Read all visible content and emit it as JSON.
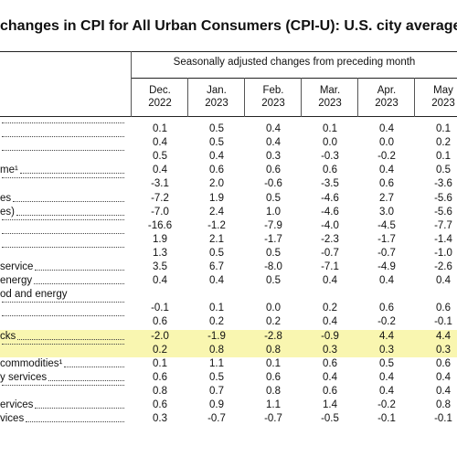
{
  "title": "changes in CPI for All Urban Consumers (CPI-U): U.S. city average",
  "header": "Seasonally adjusted changes from preceding month",
  "columns": [
    {
      "month": "Dec.",
      "year": "2022"
    },
    {
      "month": "Jan.",
      "year": "2023"
    },
    {
      "month": "Feb.",
      "year": "2023"
    },
    {
      "month": "Mar.",
      "year": "2023"
    },
    {
      "month": "Apr.",
      "year": "2023"
    },
    {
      "month": "May",
      "year": "2023"
    }
  ],
  "rows": [
    {
      "values": [
        "0.1",
        "0.5",
        "0.4",
        "0.1",
        "0.4",
        "0.1"
      ]
    },
    {
      "values": [
        "0.4",
        "0.5",
        "0.4",
        "0.0",
        "0.0",
        "0.2"
      ]
    },
    {
      "values": [
        "0.5",
        "0.4",
        "0.3",
        "-0.3",
        "-0.2",
        "0.1"
      ]
    },
    {
      "label": "me¹",
      "values": [
        "0.4",
        "0.6",
        "0.6",
        "0.6",
        "0.4",
        "0.5"
      ]
    },
    {
      "values": [
        "-3.1",
        "2.0",
        "-0.6",
        "-3.5",
        "0.6",
        "-3.6"
      ]
    },
    {
      "label": "es",
      "values": [
        "-7.2",
        "1.9",
        "0.5",
        "-4.6",
        "2.7",
        "-5.6"
      ]
    },
    {
      "label": "es)",
      "values": [
        "-7.0",
        "2.4",
        "1.0",
        "-4.6",
        "3.0",
        "-5.6"
      ]
    },
    {
      "values": [
        "-16.6",
        "-1.2",
        "-7.9",
        "-4.0",
        "-4.5",
        "-7.7"
      ]
    },
    {
      "values": [
        "1.9",
        "2.1",
        "-1.7",
        "-2.3",
        "-1.7",
        "-1.4"
      ]
    },
    {
      "values": [
        "1.3",
        "0.5",
        "0.5",
        "-0.7",
        "-0.7",
        "-1.0"
      ]
    },
    {
      "label": "service",
      "values": [
        "3.5",
        "6.7",
        "-8.0",
        "-7.1",
        "-4.9",
        "-2.6"
      ]
    },
    {
      "label": "energy",
      "values": [
        "0.4",
        "0.4",
        "0.5",
        "0.4",
        "0.4",
        "0.4"
      ]
    },
    {
      "label": "od and energy"
    },
    {
      "values": [
        "-0.1",
        "0.1",
        "0.0",
        "0.2",
        "0.6",
        "0.6"
      ]
    },
    {
      "values": [
        "0.6",
        "0.2",
        "0.2",
        "0.4",
        "-0.2",
        "-0.1"
      ]
    },
    {
      "label": "cks",
      "highlight": true,
      "values": [
        "-2.0",
        "-1.9",
        "-2.8",
        "-0.9",
        "4.4",
        "4.4"
      ]
    },
    {
      "highlight": true,
      "values": [
        "0.2",
        "0.8",
        "0.8",
        "0.3",
        "0.3",
        "0.3"
      ]
    },
    {
      "label": "commodities¹",
      "values": [
        "0.1",
        "1.1",
        "0.1",
        "0.6",
        "0.5",
        "0.6"
      ]
    },
    {
      "label": "y services",
      "values": [
        "0.6",
        "0.5",
        "0.6",
        "0.4",
        "0.4",
        "0.4"
      ]
    },
    {
      "values": [
        "0.8",
        "0.7",
        "0.8",
        "0.6",
        "0.4",
        "0.4"
      ]
    },
    {
      "label": "ervices",
      "values": [
        "0.6",
        "0.9",
        "1.1",
        "1.4",
        "-0.2",
        "0.8"
      ]
    },
    {
      "label": "vices",
      "values": [
        "0.3",
        "-0.7",
        "-0.7",
        "-0.5",
        "-0.1",
        "-0.1"
      ]
    }
  ]
}
